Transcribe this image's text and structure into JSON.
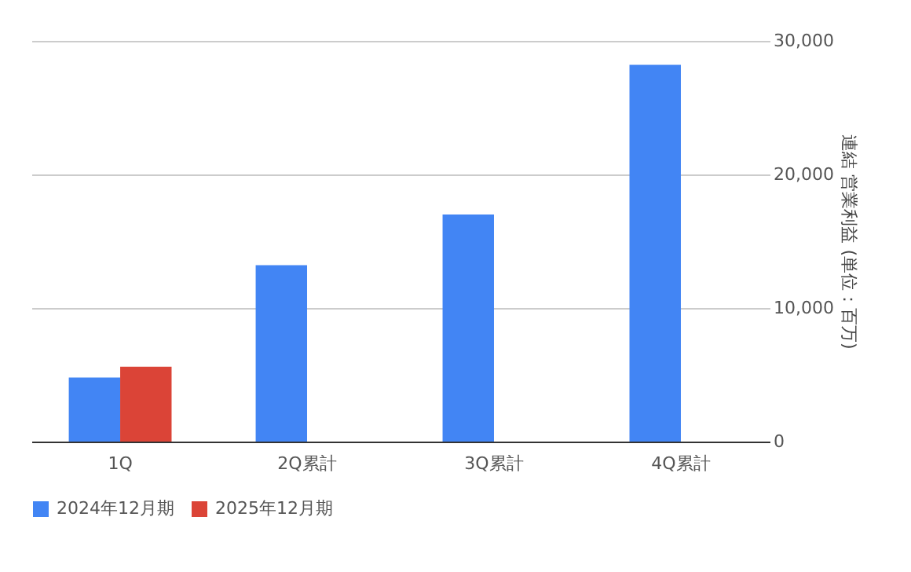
{
  "chart_data": {
    "type": "bar",
    "categories": [
      "1Q",
      "2Q累計",
      "3Q累計",
      "4Q累計"
    ],
    "ylabel": "連結 営業利益 (単位：百万)",
    "ylim": [
      0,
      30000
    ],
    "yticks": [
      {
        "value": 0,
        "label": "0"
      },
      {
        "value": 10000,
        "label": "10,000"
      },
      {
        "value": 20000,
        "label": "20,000"
      },
      {
        "value": 30000,
        "label": "30,000"
      }
    ],
    "grid": "y",
    "legend": "bottom",
    "series": [
      {
        "name": "2024年12月期",
        "color": "#4285f4",
        "values": [
          4800,
          13200,
          17000,
          28200
        ]
      },
      {
        "name": "2025年12月期",
        "color": "#db4437",
        "values": [
          5600,
          null,
          null,
          null
        ]
      }
    ]
  }
}
